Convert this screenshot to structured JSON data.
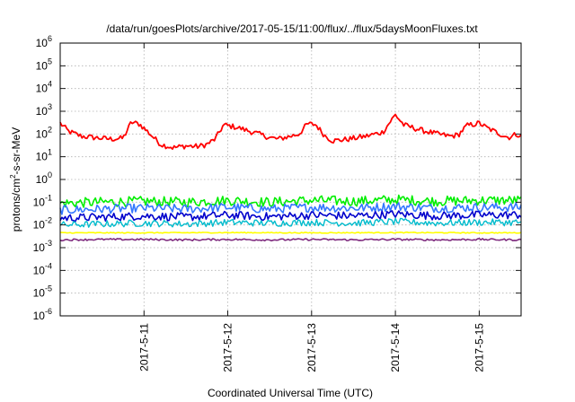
{
  "chart_data": {
    "type": "line",
    "title": "/data/run/goesPlots/archive/2017-05-15/11:00/flux/../flux/5daysMoonFluxes.txt",
    "xlabel": "Coordinated Universal Time (UTC)",
    "ylabel": "protons/cm2-s-sr-MeV",
    "ylabel_parts": {
      "before": "protons/cm",
      "sup": "2",
      "after": "-s-sr-MeV"
    },
    "yscale": "log",
    "ylim": [
      1e-06,
      1000000.0
    ],
    "y_ticks": [
      {
        "exp": "-6"
      },
      {
        "exp": "-5"
      },
      {
        "exp": "-4"
      },
      {
        "exp": "-3"
      },
      {
        "exp": "-2"
      },
      {
        "exp": "-1"
      },
      {
        "exp": "0"
      },
      {
        "exp": "1"
      },
      {
        "exp": "2"
      },
      {
        "exp": "3"
      },
      {
        "exp": "4"
      },
      {
        "exp": "5"
      },
      {
        "exp": "6"
      }
    ],
    "xlim": [
      "2017-05-10 00:00",
      "2017-05-15 12:00"
    ],
    "x_ticks": [
      {
        "label": "2017-5-11",
        "day": 1
      },
      {
        "label": "2017-5-12",
        "day": 2
      },
      {
        "label": "2017-5-13",
        "day": 3
      },
      {
        "label": "2017-5-14",
        "day": 4
      },
      {
        "label": "2017-5-15",
        "day": 5
      }
    ],
    "grid": true,
    "x_units": "days since 2017-05-10 00:00",
    "series": [
      {
        "color": "#ff0000",
        "points": [
          [
            0.0,
            300
          ],
          [
            0.1,
            130
          ],
          [
            0.25,
            80
          ],
          [
            0.4,
            70
          ],
          [
            0.6,
            60
          ],
          [
            0.75,
            65
          ],
          [
            0.85,
            330
          ],
          [
            0.95,
            270
          ],
          [
            1.05,
            120
          ],
          [
            1.2,
            35
          ],
          [
            1.35,
            25
          ],
          [
            1.5,
            30
          ],
          [
            1.65,
            28
          ],
          [
            1.75,
            35
          ],
          [
            1.85,
            60
          ],
          [
            1.95,
            250
          ],
          [
            2.1,
            200
          ],
          [
            2.3,
            120
          ],
          [
            2.5,
            70
          ],
          [
            2.6,
            60
          ],
          [
            2.75,
            80
          ],
          [
            2.85,
            100
          ],
          [
            2.95,
            280
          ],
          [
            3.05,
            260
          ],
          [
            3.15,
            90
          ],
          [
            3.25,
            50
          ],
          [
            3.45,
            60
          ],
          [
            3.65,
            80
          ],
          [
            3.85,
            120
          ],
          [
            3.95,
            400
          ],
          [
            4.0,
            700
          ],
          [
            4.1,
            250
          ],
          [
            4.3,
            150
          ],
          [
            4.5,
            100
          ],
          [
            4.65,
            80
          ],
          [
            4.75,
            90
          ],
          [
            4.85,
            230
          ],
          [
            5.0,
            300
          ],
          [
            5.1,
            180
          ],
          [
            5.25,
            100
          ],
          [
            5.35,
            70
          ],
          [
            5.45,
            100
          ],
          [
            5.5,
            80
          ]
        ]
      },
      {
        "color": "#00ee00",
        "points": [
          [
            0.0,
            0.09
          ],
          [
            0.5,
            0.1
          ],
          [
            1.0,
            0.11
          ],
          [
            1.5,
            0.1
          ],
          [
            2.0,
            0.12
          ],
          [
            2.5,
            0.1
          ],
          [
            3.0,
            0.12
          ],
          [
            3.5,
            0.11
          ],
          [
            4.0,
            0.13
          ],
          [
            4.5,
            0.11
          ],
          [
            5.0,
            0.12
          ],
          [
            5.5,
            0.12
          ]
        ]
      },
      {
        "color": "#3377ff",
        "points": [
          [
            0.0,
            0.045
          ],
          [
            0.5,
            0.05
          ],
          [
            1.0,
            0.055
          ],
          [
            1.5,
            0.05
          ],
          [
            2.0,
            0.06
          ],
          [
            2.5,
            0.05
          ],
          [
            3.0,
            0.06
          ],
          [
            3.5,
            0.055
          ],
          [
            4.0,
            0.065
          ],
          [
            4.5,
            0.055
          ],
          [
            5.0,
            0.06
          ],
          [
            5.5,
            0.06
          ]
        ]
      },
      {
        "color": "#0000cc",
        "points": [
          [
            0.0,
            0.02
          ],
          [
            0.5,
            0.022
          ],
          [
            1.0,
            0.025
          ],
          [
            1.5,
            0.022
          ],
          [
            2.0,
            0.027
          ],
          [
            2.5,
            0.023
          ],
          [
            3.0,
            0.027
          ],
          [
            3.5,
            0.025
          ],
          [
            4.0,
            0.03
          ],
          [
            4.5,
            0.025
          ],
          [
            5.0,
            0.027
          ],
          [
            5.5,
            0.028
          ]
        ]
      },
      {
        "color": "#00bbcc",
        "points": [
          [
            0.0,
            0.01
          ],
          [
            0.5,
            0.011
          ],
          [
            1.0,
            0.012
          ],
          [
            1.5,
            0.011
          ],
          [
            2.0,
            0.013
          ],
          [
            2.5,
            0.012
          ],
          [
            3.0,
            0.013
          ],
          [
            3.5,
            0.012
          ],
          [
            4.0,
            0.014
          ],
          [
            4.5,
            0.012
          ],
          [
            5.0,
            0.013
          ],
          [
            5.5,
            0.013
          ]
        ]
      },
      {
        "color": "#ffff00",
        "points": [
          [
            0.0,
            0.0045
          ],
          [
            1.0,
            0.0045
          ],
          [
            2.0,
            0.0046
          ],
          [
            3.0,
            0.0045
          ],
          [
            4.0,
            0.0046
          ],
          [
            5.0,
            0.0045
          ],
          [
            5.5,
            0.0045
          ]
        ]
      },
      {
        "color": "#7f2c7f",
        "points": [
          [
            0.0,
            0.0022
          ],
          [
            0.5,
            0.0023
          ],
          [
            1.0,
            0.0023
          ],
          [
            1.5,
            0.0022
          ],
          [
            2.0,
            0.0023
          ],
          [
            2.5,
            0.0022
          ],
          [
            3.0,
            0.0023
          ],
          [
            3.5,
            0.0022
          ],
          [
            4.0,
            0.0023
          ],
          [
            4.5,
            0.0022
          ],
          [
            5.0,
            0.0023
          ],
          [
            5.5,
            0.0022
          ]
        ]
      }
    ]
  }
}
